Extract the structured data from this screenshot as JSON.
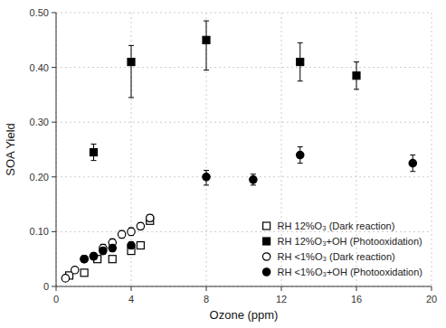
{
  "chart_data": {
    "type": "scatter",
    "title": "",
    "xlabel": "Ozone (ppm)",
    "ylabel": "SOA Yield",
    "xlim": [
      0,
      20
    ],
    "ylim": [
      0,
      0.5
    ],
    "xticks": [
      0,
      4,
      8,
      12,
      16,
      20
    ],
    "yticks": [
      0,
      {
        "value": 0.1,
        "label": "0.10"
      },
      {
        "value": 0.2,
        "label": "0.20"
      },
      {
        "value": 0.3,
        "label": "0.30"
      },
      {
        "value": 0.4,
        "label": "0.40"
      },
      {
        "value": 0.5,
        "label": "0.50"
      }
    ],
    "grid": true,
    "legend": "lower right",
    "series": [
      {
        "name": "RH 12%O₃ (Dark reaction)",
        "marker": "open-square",
        "color": "black",
        "x": [
          0.7,
          1.5,
          2.2,
          3.0,
          4.0,
          4.5,
          5.0
        ],
        "values": [
          0.02,
          0.025,
          0.05,
          0.05,
          0.065,
          0.075,
          0.12
        ],
        "yerr": [
          0.005,
          0.005,
          0.005,
          0.005,
          0.005,
          0.005,
          0.005
        ]
      },
      {
        "name": "RH 12%O₃+OH (Photooxidation)",
        "marker": "square",
        "color": "black",
        "x": [
          2.0,
          4.0,
          8.0,
          13.0,
          16.0
        ],
        "values": [
          0.245,
          0.41,
          0.45,
          0.41,
          0.385
        ],
        "yerr_lo": [
          0.015,
          0.065,
          0.055,
          0.035,
          0.025
        ],
        "yerr_hi": [
          0.015,
          0.03,
          0.035,
          0.035,
          0.025
        ]
      },
      {
        "name": "RH <1%O₃ (Dark reaction)",
        "marker": "open-circle",
        "color": "black",
        "x": [
          0.5,
          1.0,
          1.5,
          2.0,
          2.5,
          3.0,
          3.5,
          4.0,
          4.5,
          5.0
        ],
        "values": [
          0.015,
          0.03,
          0.05,
          0.055,
          0.07,
          0.08,
          0.095,
          0.1,
          0.11,
          0.125
        ],
        "yerr": [
          0.005,
          0.005,
          0.005,
          0.005,
          0.007,
          0.007,
          0.007,
          0.007,
          0.006,
          0.006
        ]
      },
      {
        "name": "RH <1%O₃+OH (Photooxidation)",
        "marker": "circle",
        "color": "black",
        "x": [
          1.5,
          2.0,
          2.5,
          3.0,
          4.0,
          8.0,
          10.5,
          13.0,
          19.0
        ],
        "values": [
          0.05,
          0.055,
          0.065,
          0.07,
          0.075,
          0.2,
          0.195,
          0.24,
          0.225
        ],
        "yerr_lo": [
          0.006,
          0.006,
          0.006,
          0.006,
          0.006,
          0.015,
          0.01,
          0.015,
          0.015
        ],
        "yerr_hi": [
          0.006,
          0.006,
          0.006,
          0.006,
          0.006,
          0.012,
          0.01,
          0.015,
          0.015
        ]
      }
    ]
  }
}
